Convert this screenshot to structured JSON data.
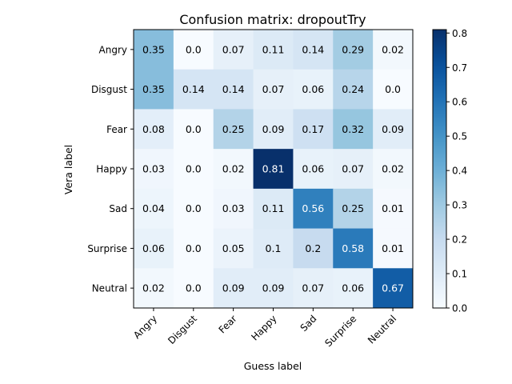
{
  "chart_data": {
    "type": "heatmap",
    "title": "Confusion matrix: dropoutTry",
    "xlabel": "Guess label",
    "ylabel": "Vera label",
    "x_categories": [
      "Angry",
      "Disgust",
      "Fear",
      "Happy",
      "Sad",
      "Surprise",
      "Neutral"
    ],
    "y_categories": [
      "Angry",
      "Disgust",
      "Fear",
      "Happy",
      "Sad",
      "Surprise",
      "Neutral"
    ],
    "values": [
      [
        0.35,
        0.0,
        0.07,
        0.11,
        0.14,
        0.29,
        0.02
      ],
      [
        0.35,
        0.14,
        0.14,
        0.07,
        0.06,
        0.24,
        0.0
      ],
      [
        0.08,
        0.0,
        0.25,
        0.09,
        0.17,
        0.32,
        0.09
      ],
      [
        0.03,
        0.0,
        0.02,
        0.81,
        0.06,
        0.07,
        0.02
      ],
      [
        0.04,
        0.0,
        0.03,
        0.11,
        0.56,
        0.25,
        0.01
      ],
      [
        0.06,
        0.0,
        0.05,
        0.1,
        0.2,
        0.58,
        0.01
      ],
      [
        0.02,
        0.0,
        0.09,
        0.09,
        0.07,
        0.06,
        0.67
      ]
    ],
    "colormap": "Blues",
    "colorbar": {
      "range": [
        0.0,
        0.81
      ],
      "ticks": [
        0.0,
        0.1,
        0.2,
        0.3,
        0.4,
        0.5,
        0.6,
        0.7,
        0.8
      ],
      "tick_labels": [
        "0.0",
        "0.1",
        "0.2",
        "0.3",
        "0.4",
        "0.5",
        "0.6",
        "0.7",
        "0.8"
      ]
    },
    "x_tick_rotation": 45,
    "grid": false
  }
}
